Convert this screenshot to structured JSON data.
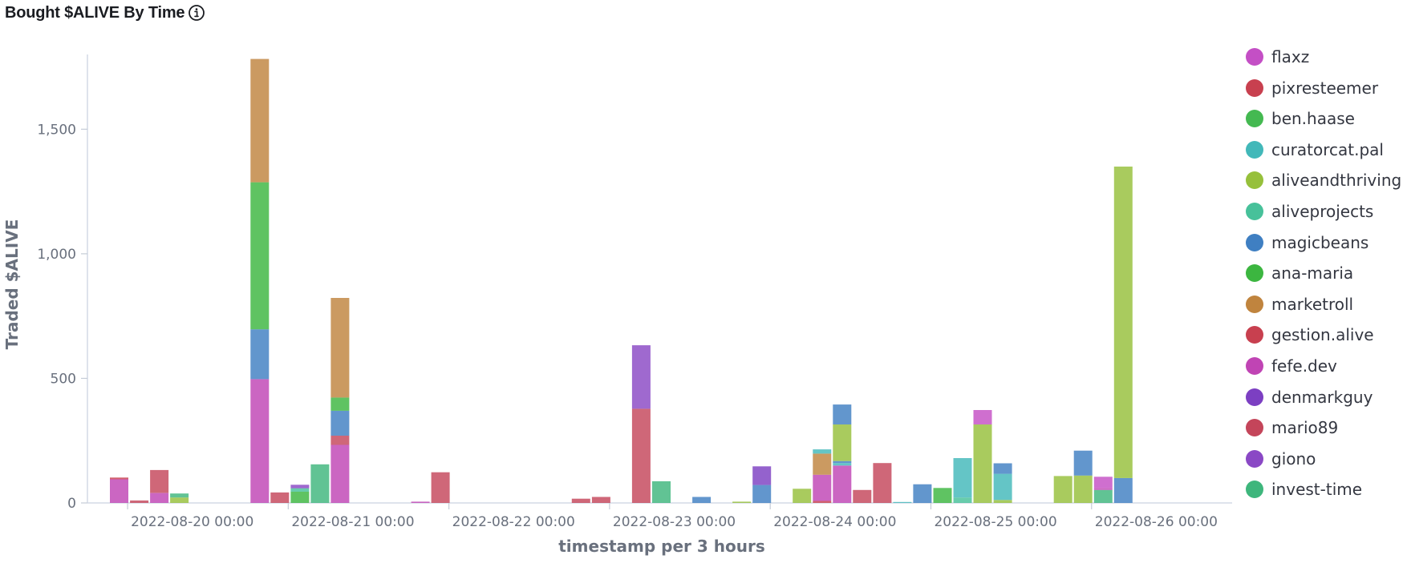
{
  "header": {
    "title": "Bought $ALIVE By Time",
    "info_icon": "info-circle-icon"
  },
  "legend": {
    "position": "right",
    "items": [
      {
        "label": "flaxz",
        "color": "#c44fc5"
      },
      {
        "label": "pixresteemer",
        "color": "#c8404f"
      },
      {
        "label": "ben.haase",
        "color": "#44b951"
      },
      {
        "label": "curatorcat.pal",
        "color": "#42b8b9"
      },
      {
        "label": "aliveandthriving",
        "color": "#96c03b"
      },
      {
        "label": "aliveprojects",
        "color": "#47c19a"
      },
      {
        "label": "magicbeans",
        "color": "#3f7fc2"
      },
      {
        "label": "ana-maria",
        "color": "#3cb640"
      },
      {
        "label": "marketroll",
        "color": "#c0843e"
      },
      {
        "label": "gestion.alive",
        "color": "#c8404f"
      },
      {
        "label": "fefe.dev",
        "color": "#c044b4"
      },
      {
        "label": "denmarkguy",
        "color": "#7c3fc2"
      },
      {
        "label": "mario89",
        "color": "#c4455a"
      },
      {
        "label": "giono",
        "color": "#8a48c5"
      },
      {
        "label": "invest-time",
        "color": "#3eb67c"
      }
    ]
  },
  "chart_data": {
    "type": "bar",
    "stacked": true,
    "title": "Bought $ALIVE By Time",
    "xlabel": "timestamp per 3 hours",
    "ylabel": "Traded $ALIVE",
    "x_start": "2022-08-19 18:00",
    "x_end": "2022-08-26 21:00",
    "ylim": [
      0,
      1800
    ],
    "y_ticks": [
      0,
      500,
      1000,
      1500
    ],
    "y_tick_labels": [
      "0",
      "500",
      "1,000",
      "1,500"
    ],
    "x_tick_labels": [
      {
        "label": "2022-08-20 00:00",
        "at": "2022-08-20 00:00"
      },
      {
        "label": "2022-08-21 00:00",
        "at": "2022-08-21 00:00"
      },
      {
        "label": "2022-08-22 00:00",
        "at": "2022-08-22 00:00"
      },
      {
        "label": "2022-08-23 00:00",
        "at": "2022-08-23 00:00"
      },
      {
        "label": "2022-08-24 00:00",
        "at": "2022-08-24 00:00"
      },
      {
        "label": "2022-08-25 00:00",
        "at": "2022-08-25 00:00"
      },
      {
        "label": "2022-08-26 00:00",
        "at": "2022-08-26 00:00"
      }
    ],
    "grid": false,
    "bars": [
      {
        "t": "2022-08-19 21:00",
        "stack": [
          {
            "name": "fefe.dev",
            "value": 95
          },
          {
            "name": "gestion.alive",
            "value": 7
          }
        ]
      },
      {
        "t": "2022-08-20 00:00",
        "stack": [
          {
            "name": "mario89",
            "value": 10
          }
        ]
      },
      {
        "t": "2022-08-20 03:00",
        "stack": [
          {
            "name": "fefe.dev",
            "value": 40
          },
          {
            "name": "mario89",
            "value": 92
          }
        ]
      },
      {
        "t": "2022-08-20 06:00",
        "stack": [
          {
            "name": "aliveandthriving",
            "value": 22
          },
          {
            "name": "invest-time",
            "value": 16
          }
        ]
      },
      {
        "t": "2022-08-20 18:00",
        "stack": [
          {
            "name": "fefe.dev",
            "value": 497
          },
          {
            "name": "magicbeans",
            "value": 200
          },
          {
            "name": "ana-maria",
            "value": 590
          },
          {
            "name": "marketroll",
            "value": 495
          }
        ]
      },
      {
        "t": "2022-08-20 21:00",
        "stack": [
          {
            "name": "mario89",
            "value": 42
          }
        ]
      },
      {
        "t": "2022-08-21 00:00",
        "stack": [
          {
            "name": "ana-maria",
            "value": 45
          },
          {
            "name": "aliveprojects",
            "value": 14
          },
          {
            "name": "giono",
            "value": 14
          }
        ]
      },
      {
        "t": "2022-08-21 03:00",
        "stack": [
          {
            "name": "invest-time",
            "value": 155
          }
        ]
      },
      {
        "t": "2022-08-21 06:00",
        "stack": [
          {
            "name": "fefe.dev",
            "value": 233
          },
          {
            "name": "mario89",
            "value": 37
          },
          {
            "name": "magicbeans",
            "value": 100
          },
          {
            "name": "ana-maria",
            "value": 53
          },
          {
            "name": "marketroll",
            "value": 400
          }
        ]
      },
      {
        "t": "2022-08-21 18:00",
        "stack": [
          {
            "name": "fefe.dev",
            "value": 5
          }
        ]
      },
      {
        "t": "2022-08-21 21:00",
        "stack": [
          {
            "name": "mario89",
            "value": 123
          }
        ]
      },
      {
        "t": "2022-08-22 18:00",
        "stack": [
          {
            "name": "mario89",
            "value": 17
          }
        ]
      },
      {
        "t": "2022-08-22 21:00",
        "stack": [
          {
            "name": "mario89",
            "value": 24
          }
        ]
      },
      {
        "t": "2022-08-23 03:00",
        "stack": [
          {
            "name": "mario89",
            "value": 378
          },
          {
            "name": "giono",
            "value": 255
          }
        ]
      },
      {
        "t": "2022-08-23 06:00",
        "stack": [
          {
            "name": "invest-time",
            "value": 87
          }
        ]
      },
      {
        "t": "2022-08-23 12:00",
        "stack": [
          {
            "name": "magicbeans",
            "value": 24
          }
        ]
      },
      {
        "t": "2022-08-23 18:00",
        "stack": [
          {
            "name": "aliveandthriving",
            "value": 5
          }
        ]
      },
      {
        "t": "2022-08-23 21:00",
        "stack": [
          {
            "name": "magicbeans",
            "value": 72
          },
          {
            "name": "denmarkguy",
            "value": 75
          }
        ]
      },
      {
        "t": "2022-08-24 03:00",
        "stack": [
          {
            "name": "aliveandthriving",
            "value": 57
          }
        ]
      },
      {
        "t": "2022-08-24 06:00",
        "stack": [
          {
            "name": "gestion.alive",
            "value": 8
          },
          {
            "name": "fefe.dev",
            "value": 105
          },
          {
            "name": "marketroll",
            "value": 85
          },
          {
            "name": "curatorcat.pal",
            "value": 17
          }
        ]
      },
      {
        "t": "2022-08-24 09:00",
        "stack": [
          {
            "name": "fefe.dev",
            "value": 150
          },
          {
            "name": "curatorcat.pal",
            "value": 10
          },
          {
            "name": "magicbeans",
            "value": 8
          },
          {
            "name": "aliveandthriving",
            "value": 147
          },
          {
            "name": "magicbeans",
            "value": 80
          }
        ]
      },
      {
        "t": "2022-08-24 12:00",
        "stack": [
          {
            "name": "mario89",
            "value": 52
          }
        ]
      },
      {
        "t": "2022-08-24 15:00",
        "stack": [
          {
            "name": "mario89",
            "value": 160
          }
        ]
      },
      {
        "t": "2022-08-24 18:00",
        "stack": [
          {
            "name": "curatorcat.pal",
            "value": 4
          }
        ]
      },
      {
        "t": "2022-08-24 21:00",
        "stack": [
          {
            "name": "magicbeans",
            "value": 75
          }
        ]
      },
      {
        "t": "2022-08-25 00:00",
        "stack": [
          {
            "name": "ana-maria",
            "value": 60
          }
        ]
      },
      {
        "t": "2022-08-25 03:00",
        "stack": [
          {
            "name": "aliveprojects",
            "value": 22
          },
          {
            "name": "curatorcat.pal",
            "value": 158
          }
        ]
      },
      {
        "t": "2022-08-25 06:00",
        "stack": [
          {
            "name": "aliveandthriving",
            "value": 315
          },
          {
            "name": "flaxz",
            "value": 58
          }
        ]
      },
      {
        "t": "2022-08-25 09:00",
        "stack": [
          {
            "name": "aliveandthriving",
            "value": 12
          },
          {
            "name": "curatorcat.pal",
            "value": 105
          },
          {
            "name": "magicbeans",
            "value": 42
          }
        ]
      },
      {
        "t": "2022-08-25 18:00",
        "stack": [
          {
            "name": "aliveandthriving",
            "value": 108
          }
        ]
      },
      {
        "t": "2022-08-25 21:00",
        "stack": [
          {
            "name": "aliveandthriving",
            "value": 110
          },
          {
            "name": "magicbeans",
            "value": 100
          }
        ]
      },
      {
        "t": "2022-08-26 00:00",
        "stack": [
          {
            "name": "invest-time",
            "value": 52
          },
          {
            "name": "fefe.dev",
            "value": 8
          },
          {
            "name": "flaxz",
            "value": 45
          }
        ]
      },
      {
        "t": "2022-08-26 03:00",
        "stack": [
          {
            "name": "magicbeans",
            "value": 100
          },
          {
            "name": "aliveandthriving",
            "value": 1250
          }
        ]
      }
    ]
  }
}
